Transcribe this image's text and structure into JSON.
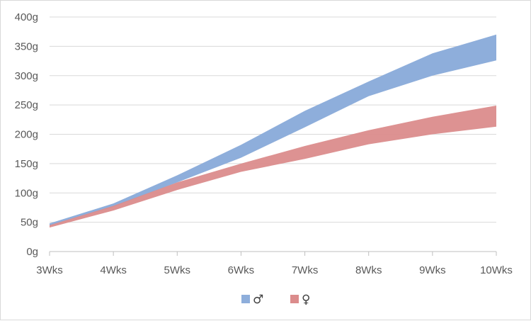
{
  "chart_data": {
    "type": "area",
    "categories": [
      "3Wks",
      "4Wks",
      "5Wks",
      "6Wks",
      "7Wks",
      "8Wks",
      "9Wks",
      "10Wks"
    ],
    "y_ticks": [
      "0g",
      "50g",
      "100g",
      "150g",
      "200g",
      "250g",
      "300g",
      "350g",
      "400g"
    ],
    "ylim": [
      0,
      400
    ],
    "grid": true,
    "legend_position": "bottom",
    "series": [
      {
        "name": "♂",
        "color": "#8eaedb",
        "lower": [
          44,
          76,
          118,
          160,
          212,
          265,
          300,
          326
        ],
        "upper": [
          48,
          82,
          130,
          182,
          240,
          290,
          338,
          370
        ]
      },
      {
        "name": "♀",
        "color": "#db8c8c",
        "lower": [
          41,
          70,
          105,
          136,
          158,
          183,
          200,
          213
        ],
        "upper": [
          45,
          78,
          118,
          150,
          180,
          207,
          230,
          249
        ]
      }
    ]
  }
}
